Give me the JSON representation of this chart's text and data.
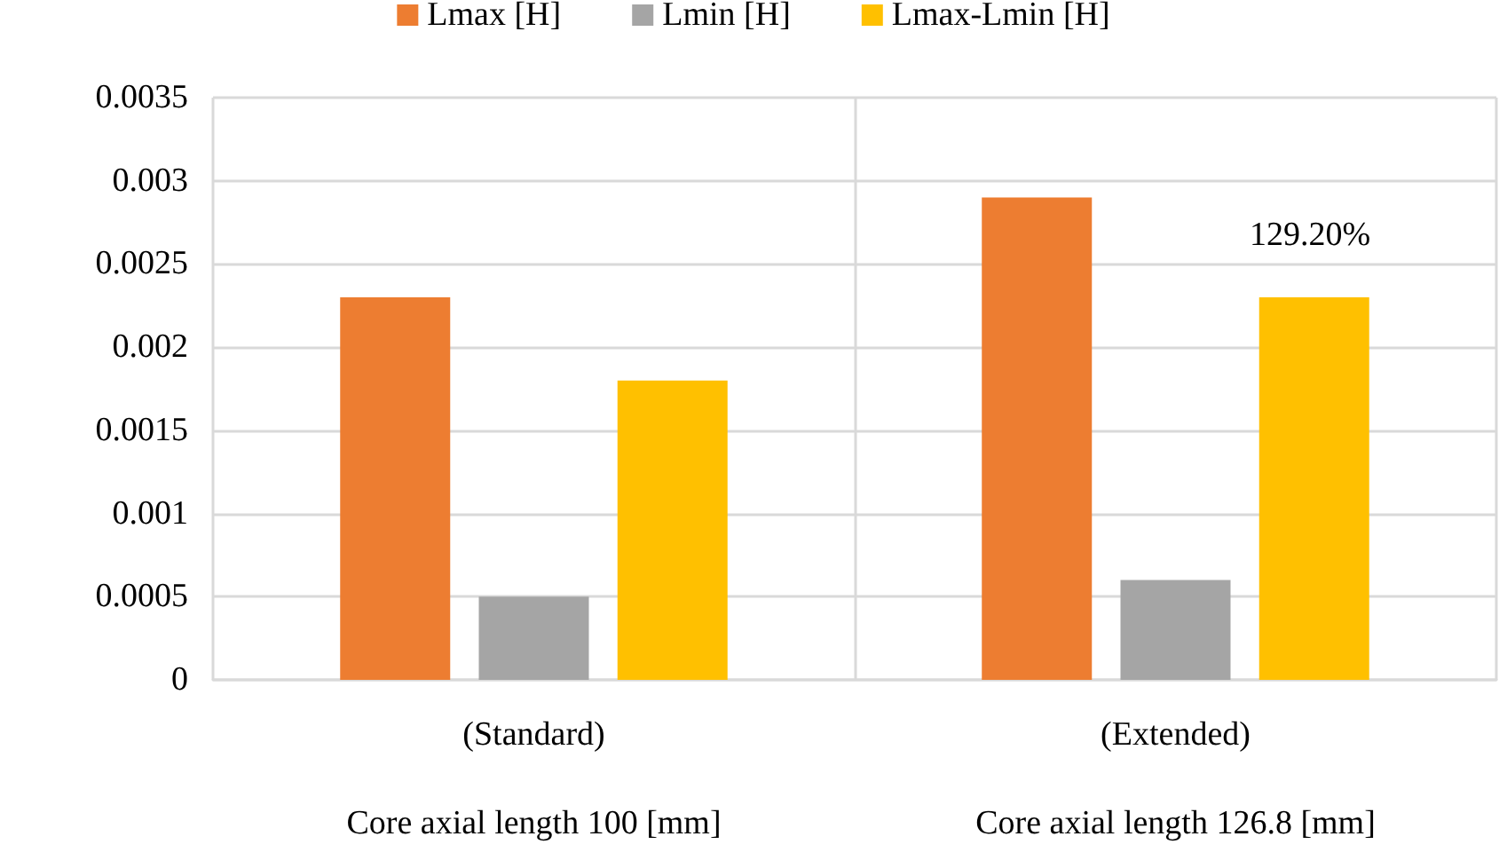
{
  "chart_data": {
    "type": "bar",
    "categories": [
      "(Standard)\nCore axial length 100 [mm]",
      "(Extended)\nCore axial length 126.8 [mm]"
    ],
    "series": [
      {
        "name": "Lmax [H]",
        "color": "#ed7d31",
        "values": [
          0.0023,
          0.0029
        ]
      },
      {
        "name": "Lmin [H]",
        "color": "#a5a5a5",
        "values": [
          0.0005,
          0.0006
        ]
      },
      {
        "name": "Lmax-Lmin [H]",
        "color": "#ffc000",
        "values": [
          0.0018,
          0.0023
        ]
      }
    ],
    "ylim": [
      0,
      0.0035
    ],
    "yticks": [
      0,
      0.0005,
      0.001,
      0.0015,
      0.002,
      0.0025,
      0.003,
      0.0035
    ],
    "annotations": [
      "129.20%"
    ],
    "grid": true,
    "legend": "top"
  }
}
